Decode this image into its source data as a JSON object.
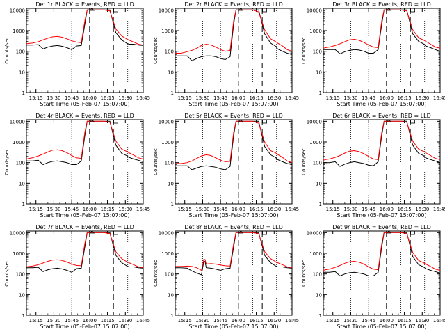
{
  "figure": {
    "xlabel": "Start Time (05-Feb-07 15:07:00)",
    "ylabel": "Counts/sec",
    "xticks": [
      "15:15",
      "15:30",
      "15:45",
      "16:00",
      "16:15",
      "16:30",
      "16:45"
    ],
    "yticks": [
      "1",
      "10",
      "100",
      "1000",
      "10000"
    ],
    "colors": {
      "events": "#000000",
      "lld": "#ff0000"
    }
  },
  "chart_data": [
    {
      "type": "line",
      "title": "Det 1r BLACK = Events, RED = LLD",
      "x_minutes": [
        0,
        2,
        5,
        10,
        14,
        18,
        22,
        26,
        30,
        34,
        38,
        42,
        46,
        49,
        51,
        55,
        60,
        65,
        70,
        75,
        80,
        84,
        86,
        90,
        94,
        98
      ],
      "series": [
        {
          "name": "Events",
          "values": [
            200,
            200,
            200,
            210,
            130,
            160,
            180,
            190,
            175,
            150,
            120,
            180,
            190,
            2000,
            10000,
            10000,
            10000,
            10000,
            10000,
            800,
            350,
            250,
            220,
            220,
            200,
            190
          ]
        },
        {
          "name": "LLD",
          "values": [
            230,
            240,
            250,
            290,
            360,
            430,
            500,
            520,
            480,
            400,
            320,
            280,
            260,
            3000,
            10000,
            10000,
            10000,
            10000,
            9000,
            1200,
            550,
            400,
            350,
            280,
            220,
            200
          ]
        }
      ],
      "ylim": [
        1,
        12000
      ],
      "ylog": true
    },
    {
      "type": "line",
      "title": "Det 2r BLACK = Events, RED = LLD",
      "x_minutes": [
        0,
        2,
        5,
        10,
        14,
        18,
        22,
        26,
        30,
        34,
        38,
        42,
        46,
        49,
        51,
        55,
        60,
        65,
        70,
        75,
        80,
        84,
        86,
        90,
        94,
        98
      ],
      "series": [
        {
          "name": "Events",
          "values": [
            60,
            60,
            60,
            60,
            35,
            45,
            55,
            60,
            60,
            55,
            45,
            40,
            55,
            2000,
            10000,
            10000,
            10000,
            10000,
            10000,
            700,
            250,
            180,
            130,
            100,
            80,
            70
          ]
        },
        {
          "name": "LLD",
          "values": [
            80,
            80,
            80,
            95,
            110,
            140,
            190,
            220,
            200,
            160,
            120,
            100,
            110,
            3000,
            10000,
            10000,
            10000,
            10000,
            8000,
            1100,
            400,
            300,
            250,
            180,
            120,
            100
          ]
        }
      ],
      "ylim": [
        1,
        12000
      ],
      "ylog": true
    },
    {
      "type": "line",
      "title": "Det 3r BLACK = Events, RED = LLD",
      "x_minutes": [
        0,
        2,
        5,
        10,
        14,
        18,
        22,
        26,
        30,
        34,
        38,
        42,
        46,
        49,
        51,
        55,
        60,
        65,
        70,
        75,
        80,
        84,
        86,
        90,
        94,
        98
      ],
      "series": [
        {
          "name": "Events",
          "values": [
            120,
            120,
            120,
            120,
            75,
            95,
            110,
            120,
            115,
            100,
            80,
            80,
            120,
            2000,
            10000,
            10000,
            10000,
            10000,
            10000,
            700,
            300,
            230,
            180,
            150,
            120,
            100
          ]
        },
        {
          "name": "LLD",
          "values": [
            140,
            150,
            160,
            190,
            230,
            290,
            360,
            380,
            340,
            270,
            200,
            160,
            150,
            3000,
            10000,
            10000,
            10000,
            10000,
            9000,
            1100,
            450,
            350,
            300,
            220,
            160,
            140
          ]
        }
      ],
      "ylim": [
        1,
        12000
      ],
      "ylog": true
    },
    {
      "type": "line",
      "title": "Det 4r BLACK = Events, RED = LLD",
      "x_minutes": [
        0,
        2,
        5,
        10,
        14,
        18,
        22,
        26,
        30,
        34,
        38,
        42,
        46,
        49,
        51,
        55,
        60,
        65,
        70,
        75,
        80,
        84,
        86,
        90,
        94,
        98
      ],
      "series": [
        {
          "name": "Events",
          "values": [
            120,
            120,
            120,
            130,
            80,
            100,
            115,
            120,
            110,
            100,
            80,
            80,
            120,
            2000,
            10000,
            10000,
            10000,
            10000,
            10000,
            700,
            280,
            220,
            180,
            150,
            130,
            110
          ]
        },
        {
          "name": "LLD",
          "values": [
            150,
            160,
            170,
            210,
            260,
            330,
            400,
            420,
            380,
            300,
            220,
            170,
            160,
            3000,
            10000,
            10000,
            10000,
            10000,
            9000,
            1100,
            450,
            350,
            300,
            230,
            170,
            150
          ]
        }
      ],
      "ylim": [
        1,
        12000
      ],
      "ylog": true
    },
    {
      "type": "line",
      "title": "Det 5r BLACK = Events, RED = LLD",
      "x_minutes": [
        0,
        2,
        5,
        10,
        14,
        18,
        22,
        26,
        30,
        34,
        38,
        42,
        46,
        49,
        51,
        55,
        60,
        65,
        70,
        75,
        80,
        84,
        86,
        90,
        94,
        98
      ],
      "series": [
        {
          "name": "Events",
          "values": [
            70,
            70,
            70,
            70,
            45,
            55,
            65,
            70,
            65,
            60,
            50,
            45,
            65,
            2000,
            10000,
            10000,
            10000,
            10000,
            10000,
            600,
            240,
            180,
            140,
            110,
            90,
            80
          ]
        },
        {
          "name": "LLD",
          "values": [
            90,
            90,
            90,
            100,
            120,
            160,
            210,
            240,
            220,
            170,
            130,
            110,
            115,
            3000,
            10000,
            10000,
            10000,
            10000,
            8000,
            1000,
            380,
            300,
            250,
            180,
            120,
            100
          ]
        }
      ],
      "ylim": [
        1,
        12000
      ],
      "ylog": true
    },
    {
      "type": "line",
      "title": "Det 6r BLACK = Events, RED = LLD",
      "x_minutes": [
        0,
        2,
        5,
        10,
        14,
        18,
        22,
        26,
        30,
        34,
        38,
        42,
        46,
        49,
        51,
        55,
        60,
        65,
        70,
        75,
        80,
        84,
        86,
        90,
        94,
        98
      ],
      "series": [
        {
          "name": "Events",
          "values": [
            100,
            100,
            100,
            110,
            65,
            85,
            100,
            110,
            100,
            90,
            75,
            70,
            110,
            2000,
            10000,
            10000,
            10000,
            10000,
            10000,
            700,
            280,
            220,
            170,
            140,
            120,
            100
          ]
        },
        {
          "name": "LLD",
          "values": [
            130,
            140,
            150,
            180,
            220,
            290,
            360,
            380,
            340,
            270,
            200,
            150,
            140,
            3000,
            10000,
            10000,
            10000,
            10000,
            9000,
            1100,
            450,
            350,
            300,
            220,
            160,
            140
          ]
        }
      ],
      "ylim": [
        1,
        12000
      ],
      "ylog": true
    },
    {
      "type": "line",
      "title": "Det 7r BLACK = Events, RED = LLD",
      "x_minutes": [
        0,
        2,
        5,
        10,
        14,
        18,
        22,
        26,
        30,
        34,
        38,
        42,
        46,
        49,
        51,
        55,
        60,
        65,
        70,
        75,
        80,
        84,
        86,
        90,
        94,
        98
      ],
      "series": [
        {
          "name": "Events",
          "values": [
            200,
            200,
            200,
            210,
            130,
            160,
            180,
            190,
            175,
            150,
            120,
            180,
            190,
            2000,
            10000,
            10000,
            10000,
            10000,
            10000,
            800,
            350,
            250,
            220,
            220,
            200,
            190
          ]
        },
        {
          "name": "LLD",
          "values": [
            220,
            230,
            240,
            280,
            340,
            410,
            470,
            490,
            450,
            380,
            300,
            260,
            250,
            3000,
            10000,
            10000,
            10000,
            10000,
            9000,
            1200,
            550,
            400,
            350,
            280,
            220,
            200
          ]
        }
      ],
      "ylim": [
        1,
        12000
      ],
      "ylog": true
    },
    {
      "type": "line",
      "title": "Det 8r BLACK = Events, RED = LLD",
      "x_minutes": [
        0,
        2,
        5,
        10,
        14,
        18,
        22,
        24,
        25,
        26,
        30,
        34,
        38,
        42,
        46,
        49,
        51,
        55,
        60,
        65,
        70,
        75,
        80,
        84,
        86,
        90,
        94,
        98
      ],
      "series": [
        {
          "name": "Events",
          "values": [
            200,
            200,
            200,
            190,
            140,
            110,
            90,
            400,
            400,
            200,
            190,
            170,
            150,
            180,
            190,
            2000,
            10000,
            10000,
            10000,
            10000,
            10000,
            800,
            350,
            250,
            220,
            220,
            200,
            190
          ]
        },
        {
          "name": "LLD",
          "values": [
            230,
            230,
            230,
            240,
            230,
            200,
            150,
            500,
            500,
            300,
            320,
            300,
            270,
            250,
            240,
            3000,
            10000,
            10000,
            10000,
            10000,
            9000,
            1200,
            550,
            400,
            350,
            280,
            220,
            200
          ]
        }
      ],
      "ylim": [
        1,
        12000
      ],
      "ylog": true
    },
    {
      "type": "line",
      "title": "Det 9r BLACK = Events, RED = LLD",
      "x_minutes": [
        0,
        2,
        5,
        10,
        14,
        18,
        22,
        26,
        30,
        34,
        38,
        42,
        46,
        49,
        51,
        55,
        60,
        65,
        70,
        75,
        80,
        84,
        86,
        90,
        94,
        98
      ],
      "series": [
        {
          "name": "Events",
          "values": [
            120,
            120,
            120,
            130,
            80,
            100,
            115,
            120,
            110,
            100,
            80,
            80,
            120,
            2000,
            10000,
            10000,
            10000,
            10000,
            10000,
            700,
            280,
            220,
            180,
            150,
            130,
            110
          ]
        },
        {
          "name": "LLD",
          "values": [
            150,
            160,
            170,
            210,
            260,
            330,
            390,
            410,
            370,
            300,
            220,
            170,
            160,
            3000,
            10000,
            10000,
            10000,
            10000,
            9000,
            1100,
            450,
            350,
            300,
            230,
            170,
            150
          ]
        }
      ],
      "ylim": [
        1,
        12000
      ],
      "ylog": true
    }
  ]
}
